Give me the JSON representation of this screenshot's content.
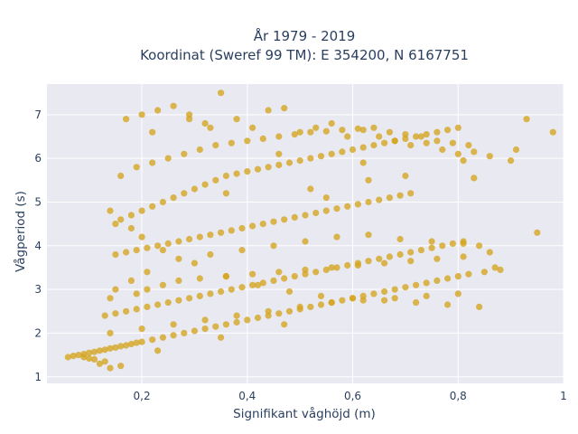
{
  "chart_data": {
    "type": "scatter",
    "title_lines": [
      "År 1979 - 2019",
      "Koordinat (Sweref 99 TM): E 354200, N 6167751"
    ],
    "xlabel": "Signifikant våghöjd (m)",
    "ylabel": "Vågperiod (s)",
    "xlim": [
      0.02,
      1.0
    ],
    "ylim": [
      0.85,
      7.7
    ],
    "x_ticks": [
      0.2,
      0.4,
      0.6,
      0.8,
      1.0
    ],
    "x_tick_labels": [
      "0,2",
      "0,4",
      "0,6",
      "0,8",
      "1"
    ],
    "y_ticks": [
      1,
      2,
      3,
      4,
      5,
      6,
      7
    ],
    "y_tick_labels": [
      "1",
      "2",
      "3",
      "4",
      "5",
      "6",
      "7"
    ],
    "grid": true,
    "legend": "none",
    "marker_color": "#d4a520",
    "plot_background": "#e9e9f2",
    "series": [
      {
        "x": [
          0.06,
          0.07,
          0.08,
          0.09,
          0.1,
          0.11,
          0.12,
          0.13,
          0.14,
          0.15,
          0.16,
          0.17,
          0.18,
          0.19,
          0.2,
          0.22,
          0.24,
          0.26,
          0.28,
          0.3,
          0.32,
          0.34,
          0.36,
          0.38,
          0.4,
          0.42,
          0.44,
          0.46,
          0.48,
          0.5,
          0.52,
          0.54,
          0.56,
          0.58,
          0.6,
          0.62,
          0.64,
          0.66,
          0.68,
          0.7,
          0.72,
          0.74,
          0.76,
          0.78,
          0.8,
          0.82,
          0.85,
          0.88,
          0.13,
          0.15,
          0.17,
          0.19,
          0.21,
          0.23,
          0.25,
          0.27,
          0.29,
          0.31,
          0.33,
          0.35,
          0.37,
          0.39,
          0.41,
          0.43,
          0.45,
          0.47,
          0.49,
          0.51,
          0.53,
          0.55,
          0.57,
          0.59,
          0.61,
          0.63,
          0.65,
          0.67,
          0.69,
          0.71,
          0.73,
          0.75,
          0.77,
          0.79,
          0.81,
          0.84,
          0.87,
          0.15,
          0.17,
          0.19,
          0.21,
          0.23,
          0.25,
          0.27,
          0.29,
          0.31,
          0.33,
          0.35,
          0.37,
          0.39,
          0.41,
          0.43,
          0.45,
          0.47,
          0.49,
          0.51,
          0.53,
          0.55,
          0.57,
          0.59,
          0.61,
          0.63,
          0.65,
          0.67,
          0.69,
          0.71,
          0.15,
          0.18,
          0.2,
          0.22,
          0.24,
          0.26,
          0.28,
          0.3,
          0.32,
          0.34,
          0.36,
          0.38,
          0.4,
          0.42,
          0.44,
          0.46,
          0.48,
          0.5,
          0.52,
          0.54,
          0.56,
          0.58,
          0.6,
          0.62,
          0.64,
          0.66,
          0.68,
          0.7,
          0.72,
          0.74,
          0.76,
          0.78,
          0.8,
          0.16,
          0.19,
          0.22,
          0.25,
          0.28,
          0.31,
          0.34,
          0.37,
          0.4,
          0.43,
          0.46,
          0.49,
          0.52,
          0.55,
          0.58,
          0.61,
          0.64,
          0.67,
          0.7,
          0.73,
          0.76,
          0.79,
          0.82,
          0.17,
          0.2,
          0.23,
          0.26,
          0.29,
          0.32,
          0.35,
          0.38,
          0.41,
          0.44,
          0.47,
          0.5,
          0.53,
          0.56,
          0.59,
          0.62,
          0.65,
          0.68,
          0.71,
          0.74,
          0.77,
          0.8,
          0.83,
          0.86,
          0.9,
          0.93,
          0.98,
          0.14,
          0.16,
          0.18,
          0.2,
          0.24,
          0.3,
          0.36,
          0.42,
          0.48,
          0.54,
          0.6,
          0.66,
          0.72,
          0.78,
          0.84,
          0.15,
          0.18,
          0.21,
          0.27,
          0.33,
          0.39,
          0.45,
          0.51,
          0.57,
          0.63,
          0.69,
          0.75,
          0.81,
          0.14,
          0.2,
          0.26,
          0.32,
          0.38,
          0.44,
          0.5,
          0.56,
          0.62,
          0.68,
          0.74,
          0.8,
          0.14,
          0.16,
          0.12,
          0.13,
          0.11,
          0.1,
          0.09,
          0.23,
          0.35,
          0.47,
          0.22,
          0.29,
          0.33,
          0.46,
          0.62,
          0.81,
          0.91,
          0.7,
          0.55,
          0.95,
          0.36,
          0.52,
          0.63,
          0.83,
          0.14,
          0.19,
          0.21,
          0.24,
          0.27,
          0.31,
          0.36,
          0.41,
          0.46,
          0.51,
          0.56,
          0.61,
          0.66,
          0.71,
          0.76,
          0.81,
          0.86
        ],
        "y": [
          1.45,
          1.48,
          1.5,
          1.52,
          1.55,
          1.57,
          1.6,
          1.62,
          1.65,
          1.67,
          1.7,
          1.72,
          1.75,
          1.78,
          1.8,
          1.85,
          1.9,
          1.95,
          2.0,
          2.05,
          2.1,
          2.15,
          2.2,
          2.25,
          2.3,
          2.35,
          2.4,
          2.45,
          2.5,
          2.55,
          2.6,
          2.65,
          2.7,
          2.75,
          2.8,
          2.85,
          2.9,
          2.95,
          3.0,
          3.05,
          3.1,
          3.15,
          3.2,
          3.25,
          3.3,
          3.35,
          3.4,
          3.45,
          2.4,
          2.45,
          2.5,
          2.55,
          2.6,
          2.65,
          2.7,
          2.75,
          2.8,
          2.85,
          2.9,
          2.95,
          3.0,
          3.05,
          3.1,
          3.15,
          3.2,
          3.25,
          3.3,
          3.35,
          3.4,
          3.45,
          3.5,
          3.55,
          3.6,
          3.65,
          3.7,
          3.75,
          3.8,
          3.85,
          3.9,
          3.95,
          4.0,
          4.05,
          4.1,
          4.0,
          3.5,
          3.8,
          3.85,
          3.9,
          3.95,
          4.0,
          4.05,
          4.1,
          4.15,
          4.2,
          4.25,
          4.3,
          4.35,
          4.4,
          4.45,
          4.5,
          4.55,
          4.6,
          4.65,
          4.7,
          4.75,
          4.8,
          4.85,
          4.9,
          4.95,
          5.0,
          5.05,
          5.1,
          5.15,
          5.2,
          4.5,
          4.7,
          4.8,
          4.9,
          5.0,
          5.1,
          5.2,
          5.3,
          5.4,
          5.5,
          5.6,
          5.65,
          5.7,
          5.75,
          5.8,
          5.85,
          5.9,
          5.95,
          6.0,
          6.05,
          6.1,
          6.15,
          6.2,
          6.25,
          6.3,
          6.35,
          6.4,
          6.45,
          6.5,
          6.55,
          6.6,
          6.65,
          6.7,
          5.6,
          5.8,
          5.9,
          6.0,
          6.1,
          6.2,
          6.3,
          6.35,
          6.4,
          6.45,
          6.5,
          6.55,
          6.6,
          6.62,
          6.65,
          6.68,
          6.7,
          6.6,
          6.55,
          6.5,
          6.4,
          6.35,
          6.3,
          6.9,
          7.0,
          7.1,
          7.2,
          7.0,
          6.8,
          7.5,
          6.9,
          6.7,
          7.1,
          7.15,
          6.6,
          6.7,
          6.8,
          6.5,
          6.65,
          6.5,
          6.4,
          6.3,
          6.35,
          6.2,
          6.1,
          6.15,
          6.05,
          5.95,
          6.9,
          6.6,
          4.8,
          4.6,
          4.4,
          4.2,
          3.9,
          3.6,
          3.3,
          3.1,
          2.95,
          2.85,
          2.8,
          2.75,
          2.7,
          2.65,
          2.6,
          3.0,
          3.2,
          3.4,
          3.7,
          3.8,
          3.9,
          4.0,
          4.1,
          4.2,
          4.25,
          4.15,
          4.1,
          4.05,
          2.0,
          2.1,
          2.2,
          2.3,
          2.4,
          2.5,
          2.6,
          2.7,
          2.75,
          2.8,
          2.85,
          2.9,
          1.2,
          1.25,
          1.3,
          1.35,
          1.4,
          1.42,
          1.45,
          1.6,
          1.9,
          2.2,
          6.6,
          6.9,
          6.7,
          6.1,
          5.9,
          5.95,
          6.2,
          5.6,
          5.1,
          4.3,
          5.2,
          5.3,
          5.5,
          5.55,
          2.8,
          2.9,
          3.0,
          3.1,
          3.2,
          3.25,
          3.3,
          3.35,
          3.4,
          3.45,
          3.5,
          3.55,
          3.6,
          3.65,
          3.7,
          3.75,
          3.85
        ]
      }
    ]
  }
}
